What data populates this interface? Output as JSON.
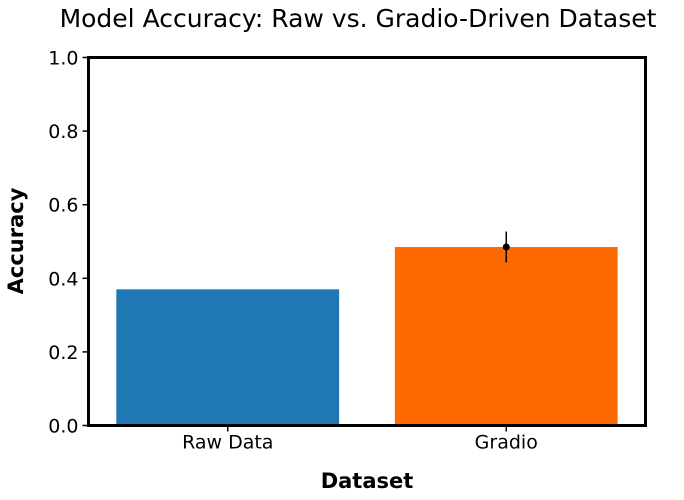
{
  "chart_data": {
    "type": "bar",
    "title": "Model Accuracy: Raw vs. Gradio-Driven Dataset",
    "xlabel": "Dataset",
    "ylabel": "Accuracy",
    "categories": [
      "Raw Data",
      "Gradio"
    ],
    "values": [
      0.37,
      0.485
    ],
    "errors": [
      null,
      0.042
    ],
    "colors": [
      "#1f77b4",
      "#ff6a00"
    ],
    "ylim": [
      0,
      1.0
    ],
    "yticks": [
      "0.0",
      "0.2",
      "0.4",
      "0.6",
      "0.8",
      "1.0"
    ],
    "grid": false,
    "legend": "none"
  }
}
